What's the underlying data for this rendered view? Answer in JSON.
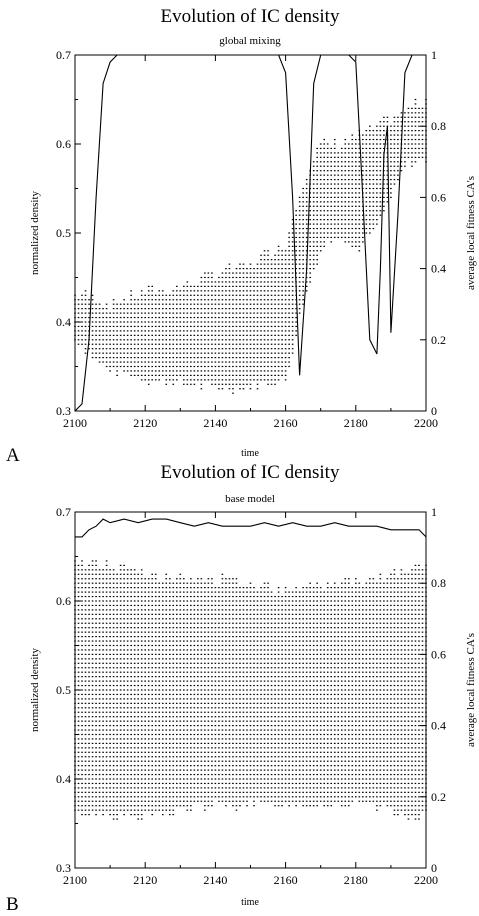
{
  "panels": [
    {
      "panel_label": "A",
      "title": "Evolution of IC density",
      "subtitle": "global mixing",
      "xlabel": "time",
      "ylabel_left": "normalized density",
      "ylabel_right": "average local fitness CA's",
      "x_ticks": [
        "2100",
        "2120",
        "2140",
        "2160",
        "2180",
        "2200"
      ],
      "y_left_ticks": [
        "0.3",
        "0.4",
        "0.5",
        "0.6",
        "0.7"
      ],
      "y_right_ticks": [
        "0",
        "0.2",
        "0.4",
        "0.6",
        "0.8",
        "1"
      ]
    },
    {
      "panel_label": "B",
      "title": "Evolution of IC density",
      "subtitle": "base model",
      "xlabel": "time",
      "ylabel_left": "normalized density",
      "ylabel_right": "average local fitness CA's",
      "x_ticks": [
        "2100",
        "2120",
        "2140",
        "2160",
        "2180",
        "2200"
      ],
      "y_left_ticks": [
        "0.3",
        "0.4",
        "0.5",
        "0.6",
        "0.7"
      ],
      "y_right_ticks": [
        "0",
        "0.2",
        "0.4",
        "0.6",
        "0.8",
        "1"
      ]
    }
  ],
  "chart_data": [
    {
      "type": "scatter",
      "title": "Evolution of IC density",
      "subtitle": "global mixing",
      "xlabel": "time",
      "ylabel": "normalized density",
      "y2label": "average local fitness CA's",
      "xlim": [
        2100,
        2200
      ],
      "ylim": [
        0.3,
        0.7
      ],
      "y2lim": [
        0,
        1
      ],
      "density_band": {
        "x": [
          2100,
          2105,
          2110,
          2120,
          2130,
          2140,
          2150,
          2160,
          2165,
          2170,
          2175,
          2180,
          2185,
          2190,
          2195,
          2200
        ],
        "low": [
          0.38,
          0.36,
          0.345,
          0.335,
          0.33,
          0.325,
          0.325,
          0.335,
          0.42,
          0.48,
          0.5,
          0.48,
          0.5,
          0.54,
          0.58,
          0.58
        ],
        "high": [
          0.43,
          0.43,
          0.42,
          0.435,
          0.44,
          0.455,
          0.465,
          0.49,
          0.56,
          0.6,
          0.6,
          0.61,
          0.62,
          0.63,
          0.64,
          0.65
        ]
      },
      "fitness_line": {
        "x": [
          2100,
          2102,
          2104,
          2106,
          2108,
          2110,
          2112,
          2115,
          2120,
          2130,
          2140,
          2150,
          2158,
          2160,
          2162,
          2164,
          2166,
          2168,
          2170,
          2175,
          2178,
          2180,
          2182,
          2184,
          2186,
          2187,
          2188,
          2189,
          2190,
          2192,
          2194,
          2196,
          2198,
          2200
        ],
        "y": [
          0.0,
          0.02,
          0.2,
          0.6,
          0.92,
          0.98,
          1.0,
          1.0,
          1.0,
          1.0,
          1.0,
          1.0,
          1.0,
          0.95,
          0.6,
          0.1,
          0.4,
          0.92,
          1.0,
          1.0,
          1.0,
          0.98,
          0.6,
          0.2,
          0.16,
          0.4,
          0.72,
          0.8,
          0.22,
          0.55,
          0.95,
          1.0,
          1.0,
          1.0
        ]
      }
    },
    {
      "type": "scatter",
      "title": "Evolution of IC density",
      "subtitle": "base model",
      "xlabel": "time",
      "ylabel": "normalized density",
      "y2label": "average local fitness CA's",
      "xlim": [
        2100,
        2200
      ],
      "ylim": [
        0.3,
        0.7
      ],
      "y2lim": [
        0,
        1
      ],
      "density_band": {
        "x": [
          2100,
          2110,
          2120,
          2130,
          2140,
          2150,
          2160,
          2170,
          2180,
          2190,
          2195,
          2200
        ],
        "low": [
          0.36,
          0.36,
          0.355,
          0.365,
          0.37,
          0.37,
          0.37,
          0.37,
          0.37,
          0.365,
          0.355,
          0.36
        ],
        "high": [
          0.645,
          0.64,
          0.635,
          0.625,
          0.625,
          0.62,
          0.615,
          0.62,
          0.625,
          0.63,
          0.635,
          0.64
        ]
      },
      "fitness_line": {
        "x": [
          2100,
          2102,
          2104,
          2106,
          2108,
          2110,
          2114,
          2118,
          2122,
          2126,
          2130,
          2134,
          2138,
          2142,
          2146,
          2150,
          2154,
          2158,
          2162,
          2166,
          2170,
          2174,
          2178,
          2182,
          2186,
          2190,
          2194,
          2198,
          2200
        ],
        "y": [
          0.93,
          0.93,
          0.95,
          0.96,
          0.98,
          0.97,
          0.98,
          0.97,
          0.98,
          0.98,
          0.97,
          0.96,
          0.97,
          0.96,
          0.96,
          0.96,
          0.97,
          0.96,
          0.97,
          0.96,
          0.96,
          0.97,
          0.96,
          0.96,
          0.96,
          0.95,
          0.95,
          0.95,
          0.93
        ]
      }
    }
  ]
}
